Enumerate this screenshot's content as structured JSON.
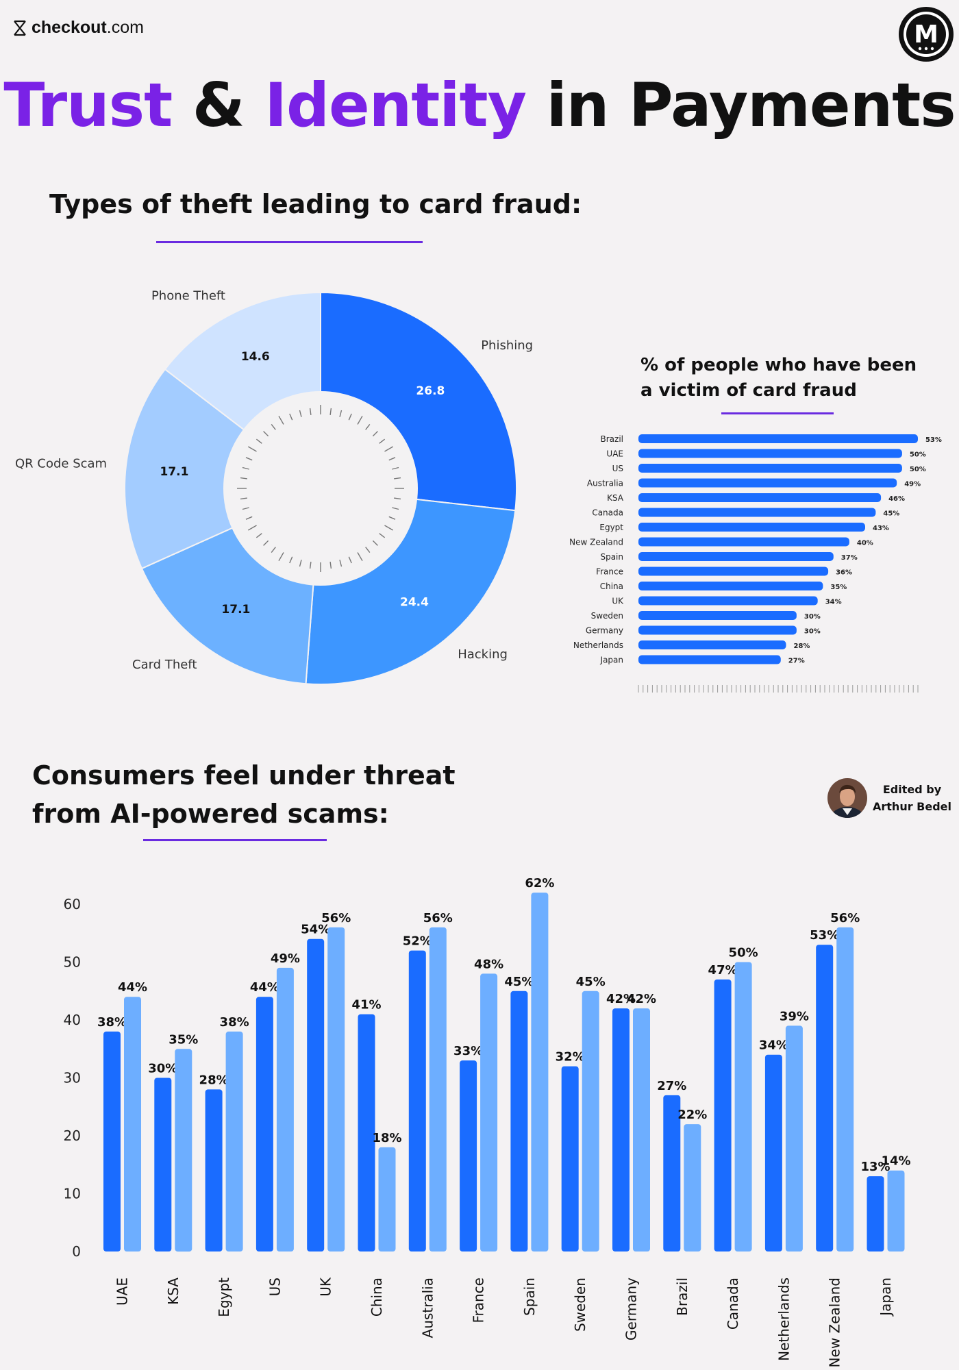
{
  "brand": {
    "name_bold": "checkout",
    "name_light": ".com"
  },
  "title": {
    "part1": "Trust",
    "part2": " & ",
    "part3": "Identity",
    "part4": " in Payments"
  },
  "editor": {
    "line1": "Edited by",
    "line2": "Arthur Bedel"
  },
  "colors": {
    "accent_purple": "#7a22e6",
    "rule_purple": "#6a2be0",
    "bar_dark": "#1a6cff",
    "bar_light": "#6daeff"
  },
  "chart_data": [
    {
      "type": "pie",
      "title": "Types of theft leading to card fraud:",
      "labels": [
        "Phishing",
        "Hacking",
        "Card Theft",
        "QR Code Scam",
        "Phone Theft"
      ],
      "values": [
        26.8,
        24.4,
        17.1,
        17.1,
        14.6
      ],
      "colors": [
        "#1a6cff",
        "#3d96ff",
        "#6cb1ff",
        "#a3ccff",
        "#cfe3ff"
      ],
      "donut": true
    },
    {
      "type": "bar",
      "orientation": "horizontal",
      "title": "% of people who have been a victim of card fraud",
      "categories": [
        "Brazil",
        "UAE",
        "US",
        "Australia",
        "KSA",
        "Canada",
        "Egypt",
        "New Zealand",
        "Spain",
        "France",
        "China",
        "UK",
        "Sweden",
        "Germany",
        "Netherlands",
        "Japan"
      ],
      "values": [
        53,
        50,
        50,
        49,
        46,
        45,
        43,
        40,
        37,
        36,
        35,
        34,
        30,
        30,
        28,
        27
      ],
      "value_labels": [
        "53%",
        "50%",
        "50%",
        "49%",
        "46%",
        "45%",
        "43%",
        "40%",
        "37%",
        "36%",
        "35%",
        "34%",
        "30%",
        "30%",
        "28%",
        "27%"
      ]
    },
    {
      "type": "bar",
      "title": "Consumers feel under threat from AI-powered scams:",
      "categories": [
        "UAE",
        "KSA",
        "Egypt",
        "US",
        "UK",
        "China",
        "Australia",
        "France",
        "Spain",
        "Sweden",
        "Germany",
        "Brazil",
        "Canada",
        "Netherlands",
        "New Zealand",
        "Japan"
      ],
      "series": [
        {
          "values": [
            38,
            30,
            28,
            44,
            54,
            41,
            52,
            33,
            45,
            32,
            42,
            27,
            47,
            34,
            53,
            13
          ],
          "value_labels": [
            "38%",
            "30%",
            "28%",
            "44%",
            "54%",
            "41%",
            "52%",
            "33%",
            "45%",
            "32%",
            "42%",
            "27%",
            "47%",
            "34%",
            "53%",
            "13%"
          ]
        },
        {
          "values": [
            44,
            35,
            38,
            49,
            56,
            18,
            56,
            48,
            62,
            45,
            42,
            22,
            50,
            39,
            56,
            14
          ],
          "value_labels": [
            "44%",
            "35%",
            "38%",
            "49%",
            "56%",
            "18%",
            "56%",
            "48%",
            "62%",
            "45%",
            "42%",
            "22%",
            "50%",
            "39%",
            "56%",
            "14%"
          ]
        }
      ],
      "y_ticks": [
        "0",
        "10",
        "20",
        "30",
        "40",
        "50",
        "60"
      ],
      "ylim": [
        0,
        60
      ],
      "grid": false,
      "legend": false
    }
  ]
}
